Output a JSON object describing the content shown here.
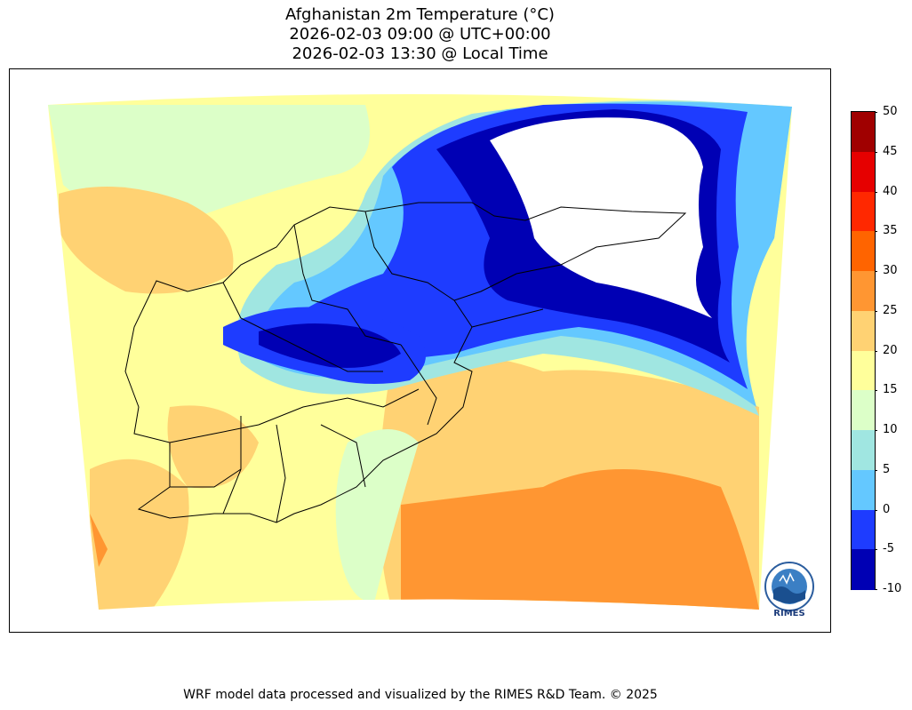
{
  "title": {
    "line1": "Afghanistan 2m Temperature (°C)",
    "line2": "2026-02-03 09:00 @ UTC+00:00",
    "line3": "2026-02-03 13:30 @ Local Time"
  },
  "colorbar": {
    "unit": "°C",
    "bins": [
      {
        "from": -10,
        "to": -5,
        "color": "#0000b4"
      },
      {
        "from": -5,
        "to": 0,
        "color": "#1e3cff"
      },
      {
        "from": 0,
        "to": 5,
        "color": "#64c8ff"
      },
      {
        "from": 5,
        "to": 10,
        "color": "#a0e6e1"
      },
      {
        "from": 10,
        "to": 15,
        "color": "#dcffc8"
      },
      {
        "from": 15,
        "to": 20,
        "color": "#ffff9b"
      },
      {
        "from": 20,
        "to": 25,
        "color": "#ffd273"
      },
      {
        "from": 25,
        "to": 30,
        "color": "#ff9632"
      },
      {
        "from": 30,
        "to": 35,
        "color": "#ff6400"
      },
      {
        "from": 35,
        "to": 40,
        "color": "#ff2800"
      },
      {
        "from": 40,
        "to": 45,
        "color": "#e60000"
      },
      {
        "from": 45,
        "to": 50,
        "color": "#a00000"
      }
    ],
    "tick_labels": [
      "50",
      "45",
      "40",
      "35",
      "30",
      "25",
      "20",
      "15",
      "10",
      "5",
      "0",
      "-5",
      "-10"
    ]
  },
  "logo": {
    "text": "RIMES"
  },
  "footer": "WRF model data processed and visualized by the RIMES R&D Team. © 2025"
}
